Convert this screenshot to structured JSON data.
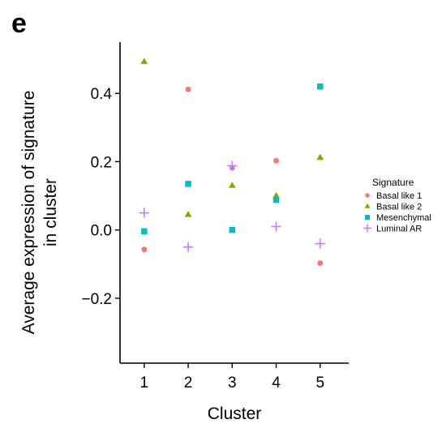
{
  "panel_label": "e",
  "chart_data": {
    "type": "scatter",
    "title": "",
    "xlabel": "Cluster",
    "ylabel_lines": [
      "Average expression of signature",
      "in cluster"
    ],
    "x": [
      1,
      2,
      3,
      4,
      5
    ],
    "xticks": [
      "1",
      "2",
      "3",
      "4",
      "5"
    ],
    "xlim": [
      0.45,
      5.65
    ],
    "yticks": [
      -0.2,
      0.0,
      0.2,
      0.4
    ],
    "ytick_labels": [
      "−0.2",
      "0.0",
      "0.2",
      "0.4"
    ],
    "ylim": [
      -0.39,
      0.55
    ],
    "grid": false,
    "legend": {
      "title": "Signature",
      "placement": "right"
    },
    "series": [
      {
        "name": "Basal like 1",
        "marker": "circle",
        "color": "#F8766D",
        "values": [
          -0.057,
          0.412,
          0.182,
          0.203,
          -0.097
        ]
      },
      {
        "name": "Basal like 2",
        "marker": "triangle",
        "color": "#7CAE00",
        "values": [
          0.493,
          0.045,
          0.13,
          0.1,
          0.212
        ]
      },
      {
        "name": "Mesenchymal",
        "marker": "square",
        "color": "#00BFC4",
        "values": [
          -0.004,
          0.135,
          0.0,
          0.088,
          0.42
        ]
      },
      {
        "name": "Luminal AR",
        "marker": "plus",
        "color": "#C77CFF",
        "values": [
          0.05,
          -0.05,
          0.188,
          0.01,
          -0.04
        ]
      }
    ]
  }
}
